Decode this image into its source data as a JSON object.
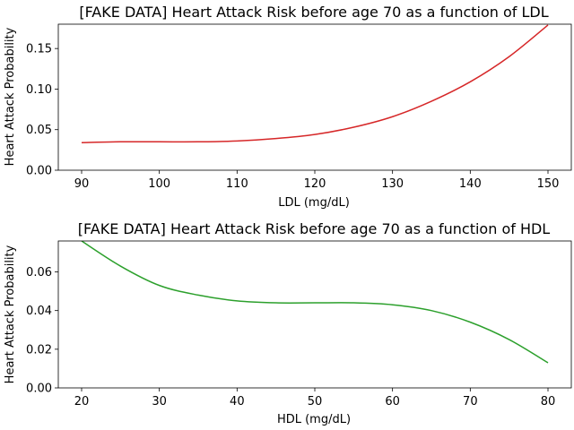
{
  "chart_data": [
    {
      "type": "line",
      "title": "[FAKE DATA] Heart Attack Risk before age 70 as a function of LDL",
      "xlabel": "LDL (mg/dL)",
      "ylabel": "Heart Attack Probability",
      "xlim": [
        87,
        153
      ],
      "ylim": [
        0,
        0.18
      ],
      "xticks": [
        90,
        100,
        110,
        120,
        130,
        140,
        150
      ],
      "yticks": [
        0.0,
        0.05,
        0.1,
        0.15
      ],
      "ytick_labels": [
        "0.00",
        "0.05",
        "0.10",
        "0.15"
      ],
      "grid": false,
      "color": "#d62728",
      "series": [
        {
          "x": [
            90,
            95,
            100,
            105,
            110,
            115,
            120,
            125,
            130,
            135,
            140,
            145,
            150
          ],
          "values": [
            0.034,
            0.035,
            0.035,
            0.035,
            0.036,
            0.039,
            0.044,
            0.053,
            0.066,
            0.085,
            0.109,
            0.14,
            0.179
          ]
        }
      ]
    },
    {
      "type": "line",
      "title": "[FAKE DATA] Heart Attack Risk before age 70 as a function of HDL",
      "xlabel": "HDL (mg/dL)",
      "ylabel": "Heart Attack Probability",
      "xlim": [
        17,
        83
      ],
      "ylim": [
        0,
        0.076
      ],
      "xticks": [
        20,
        30,
        40,
        50,
        60,
        70,
        80
      ],
      "yticks": [
        0.0,
        0.02,
        0.04,
        0.06
      ],
      "ytick_labels": [
        "0.00",
        "0.02",
        "0.04",
        "0.06"
      ],
      "grid": false,
      "color": "#2ca02c",
      "series": [
        {
          "x": [
            20,
            25,
            30,
            35,
            40,
            45,
            50,
            55,
            60,
            65,
            70,
            75,
            80
          ],
          "values": [
            0.076,
            0.063,
            0.053,
            0.048,
            0.045,
            0.044,
            0.044,
            0.044,
            0.043,
            0.04,
            0.034,
            0.025,
            0.013
          ]
        }
      ]
    }
  ]
}
